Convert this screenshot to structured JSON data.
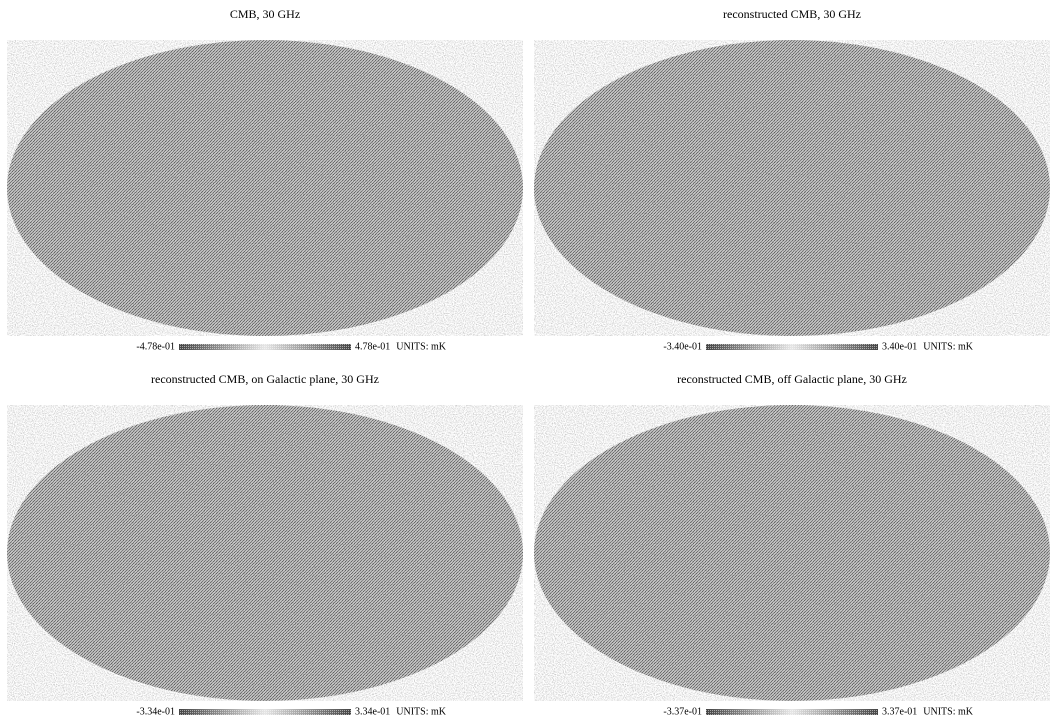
{
  "panels": [
    {
      "title": "CMB, 30 GHz",
      "min": "-4.78e-01",
      "max": "4.78e-01",
      "units": "UNITS: mK"
    },
    {
      "title": "reconstructed CMB, 30 GHz",
      "min": "-3.40e-01",
      "max": "3.40e-01",
      "units": "UNITS: mK"
    },
    {
      "title": "reconstructed CMB, on Galactic plane, 30 GHz",
      "min": "-3.34e-01",
      "max": "3.34e-01",
      "units": "UNITS: mK"
    },
    {
      "title": "reconstructed CMB, off Galactic plane, 30 GHz",
      "min": "-3.37e-01",
      "max": "3.37e-01",
      "units": "UNITS: mK"
    }
  ]
}
